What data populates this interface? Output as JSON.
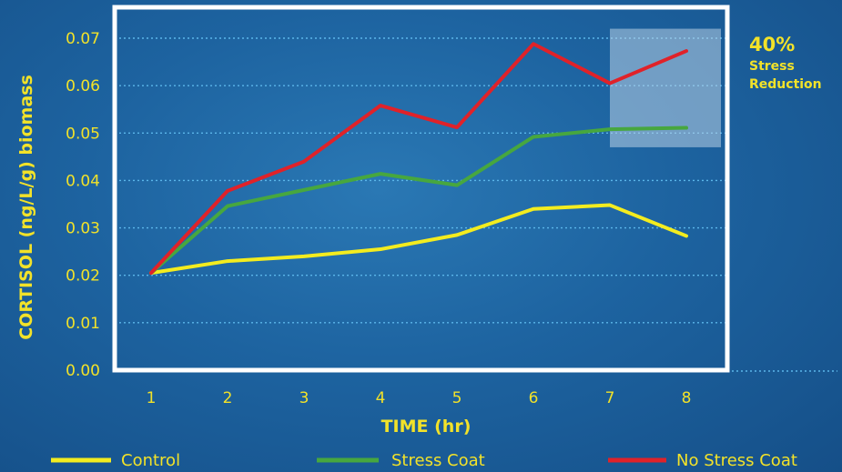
{
  "chart_data": {
    "type": "line",
    "xlabel": "TIME (hr)",
    "ylabel": "CORTISOL (ng/L/g) biomass",
    "x": [
      1,
      2,
      3,
      4,
      5,
      6,
      7,
      8
    ],
    "x_tick_labels": [
      "1",
      "2",
      "3",
      "4",
      "5",
      "6",
      "7",
      "8"
    ],
    "ylim": [
      0,
      0.07
    ],
    "y_tick_labels": [
      "0.00",
      "0.01",
      "0.02",
      "0.03",
      "0.04",
      "0.05",
      "0.06",
      "0.07"
    ],
    "grid": true,
    "legend_position": "bottom",
    "series": [
      {
        "name": "Control",
        "color": "#f3ec1f",
        "values": [
          0.0205,
          0.023,
          0.024,
          0.0255,
          0.0285,
          0.034,
          0.0348,
          0.0283
        ]
      },
      {
        "name": "Stress Coat",
        "color": "#47a73f",
        "values": [
          0.0205,
          0.0346,
          0.038,
          0.0414,
          0.039,
          0.0492,
          0.0508,
          0.0511
        ]
      },
      {
        "name": "No Stress Coat",
        "color": "#e02229",
        "values": [
          0.0205,
          0.0378,
          0.044,
          0.0558,
          0.0512,
          0.0688,
          0.0605,
          0.0673
        ]
      }
    ],
    "annotation": {
      "value": "40%",
      "line1": "Stress",
      "line2": "Reduction",
      "x_range": [
        7,
        8
      ],
      "y_range": [
        0.047,
        0.072
      ]
    }
  }
}
